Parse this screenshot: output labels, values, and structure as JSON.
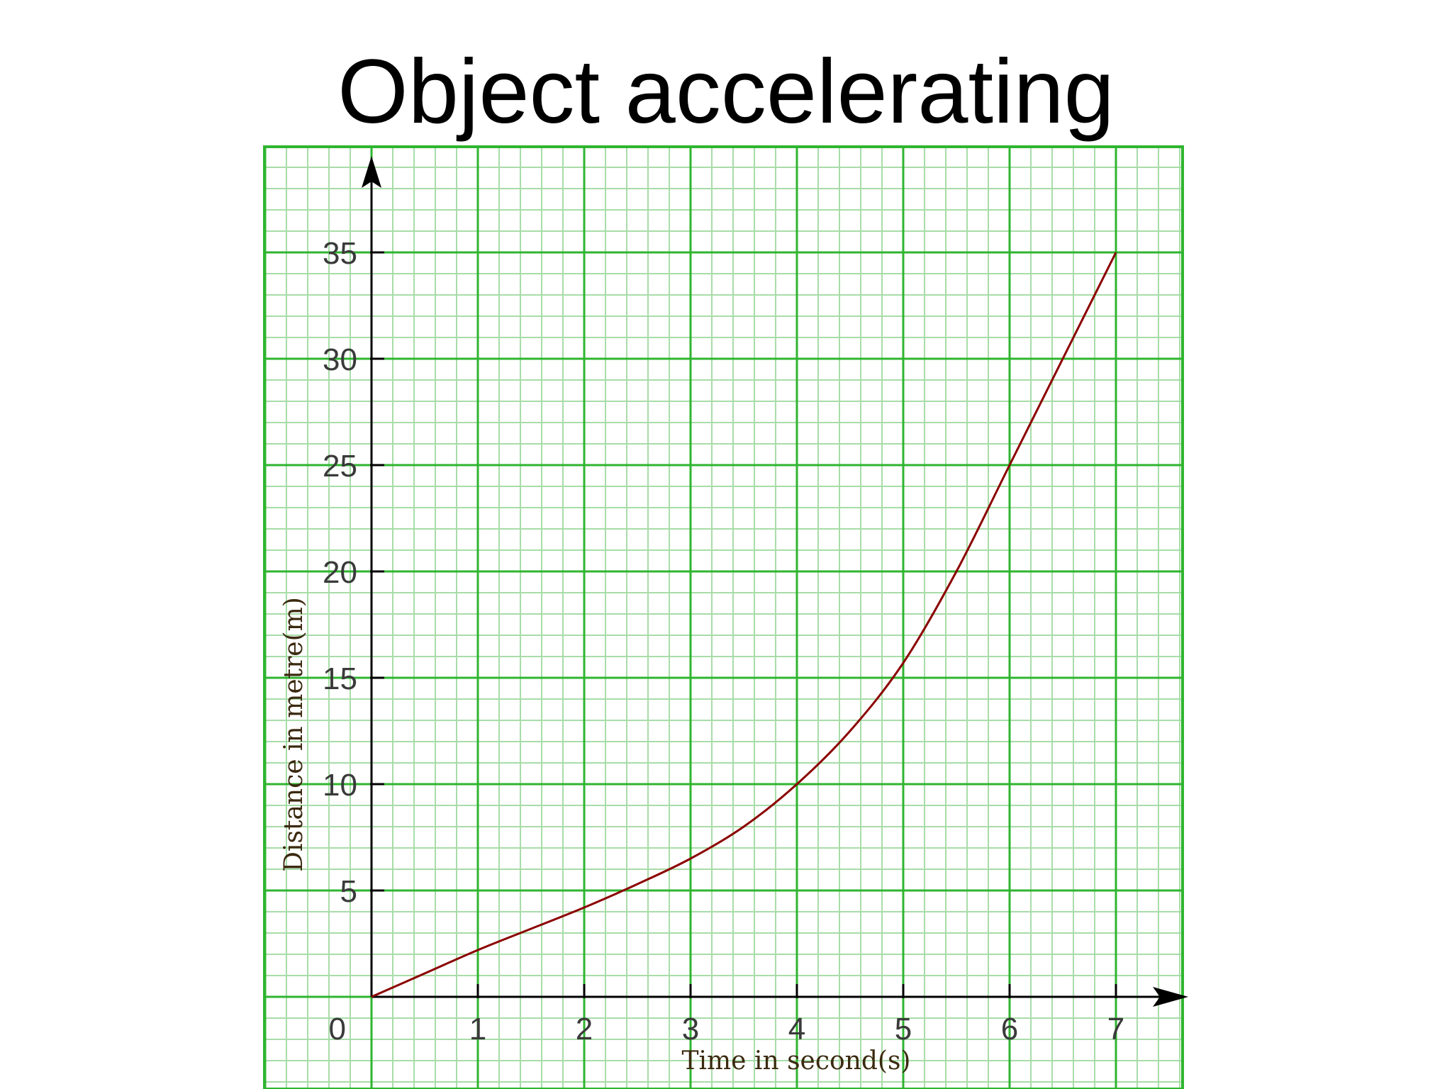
{
  "slide": {
    "title": "Object accelerating"
  },
  "colors": {
    "grid_major": "#2fb52f",
    "grid_minor": "#a8dca8",
    "axis": "#000000",
    "curve": "#8b0000",
    "background": "#ffffff"
  },
  "chart_data": {
    "type": "line",
    "title": "Object accelerating",
    "xlabel": "Time in second(s)",
    "ylabel": "Distance in metre(m)",
    "xlim": [
      0,
      7
    ],
    "ylim": [
      0,
      35
    ],
    "x_ticks": [
      1,
      2,
      3,
      4,
      5,
      6,
      7
    ],
    "y_ticks": [
      5,
      10,
      15,
      20,
      25,
      30,
      35
    ],
    "origin_label": "0",
    "grid": true,
    "series": [
      {
        "x": [
          0,
          0.5,
          1,
          1.5,
          2,
          2.5,
          3,
          3.5,
          4,
          4.5,
          5,
          5.5,
          6,
          6.5,
          7
        ],
        "y": [
          0,
          1.1,
          2.2,
          3.2,
          4.2,
          5.3,
          6.5,
          8.0,
          10.0,
          12.5,
          15.7,
          20.0,
          25.0,
          30.0,
          35.0
        ]
      }
    ]
  }
}
